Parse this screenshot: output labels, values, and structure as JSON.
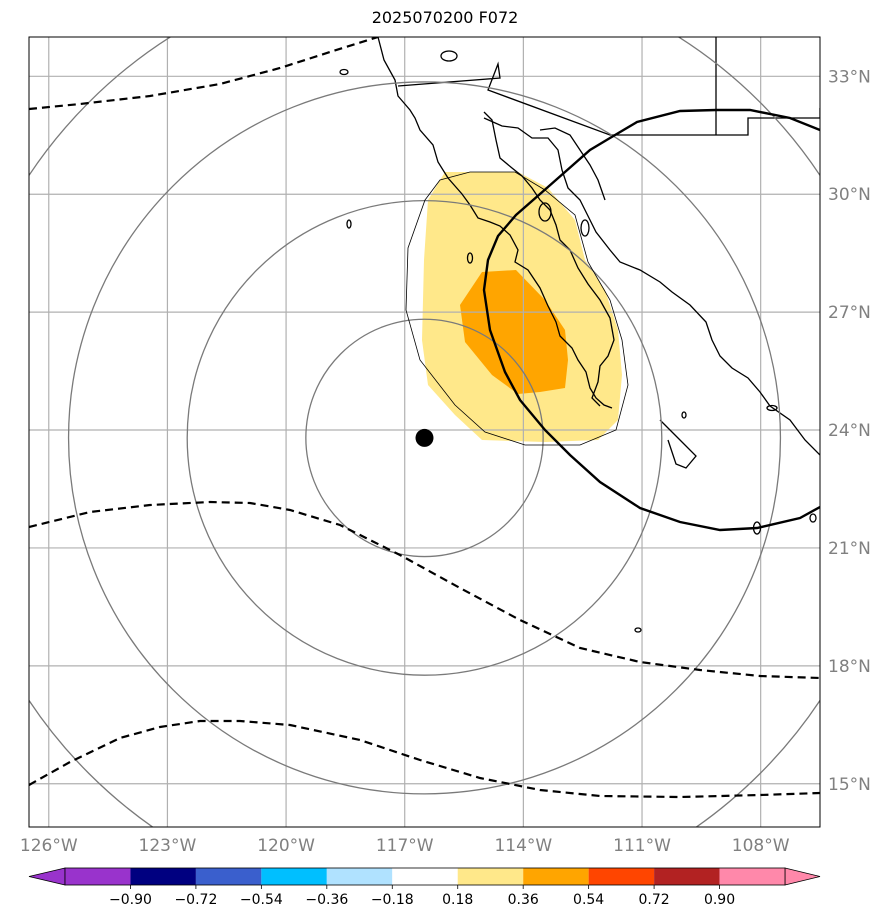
{
  "title": "2025070200 F072",
  "map": {
    "lon_range": [
      -126.5,
      -106.5
    ],
    "lat_range": [
      13.9,
      34.0
    ],
    "storm_center": {
      "lon": -116.5,
      "lat": 23.8
    },
    "lat_labels": [
      {
        "lat": 33,
        "text": "33°N"
      },
      {
        "lat": 30,
        "text": "30°N"
      },
      {
        "lat": 27,
        "text": "27°N"
      },
      {
        "lat": 24,
        "text": "24°N"
      },
      {
        "lat": 21,
        "text": "21°N"
      },
      {
        "lat": 18,
        "text": "18°N"
      },
      {
        "lat": 15,
        "text": "15°N"
      }
    ],
    "lon_labels": [
      {
        "lon": -126,
        "text": "126°W"
      },
      {
        "lon": -123,
        "text": "123°W"
      },
      {
        "lon": -120,
        "text": "120°W"
      },
      {
        "lon": -117,
        "text": "117°W"
      },
      {
        "lon": -114,
        "text": "114°W"
      },
      {
        "lon": -111,
        "text": "111°W"
      },
      {
        "lon": -108,
        "text": "108°W"
      }
    ],
    "range_rings_deg": [
      3.0,
      6.0,
      9.0,
      12.0
    ],
    "grid": true
  },
  "colorbar": {
    "ticks": [
      "−0.90",
      "−0.72",
      "−0.54",
      "−0.36",
      "−0.18",
      "0.18",
      "0.36",
      "0.54",
      "0.72",
      "0.90"
    ],
    "colors": [
      "#9933cc",
      "#000080",
      "#3a5fcd",
      "#00bfff",
      "#b0e2ff",
      "#ffffff",
      "#ffe88a",
      "#ffa500",
      "#ff4500",
      "#b22222",
      "#ff88aa"
    ]
  }
}
